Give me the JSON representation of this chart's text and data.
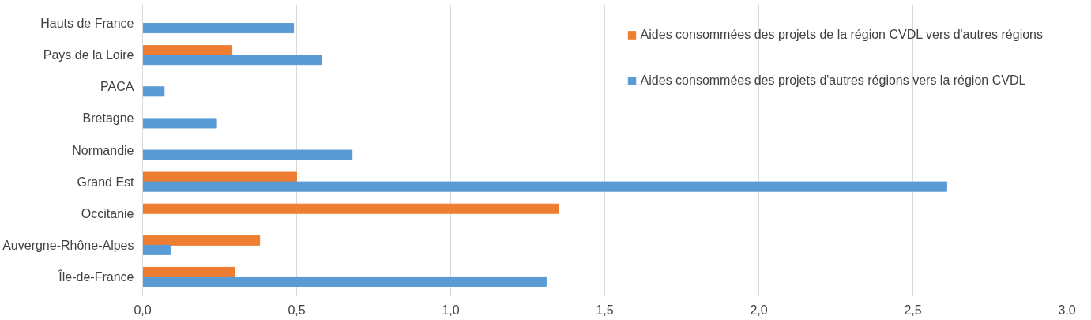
{
  "chart_data": {
    "type": "bar",
    "orientation": "horizontal",
    "categories": [
      "Hauts de France",
      "Pays de la Loire",
      "PACA",
      "Bretagne",
      "Normandie",
      "Grand Est",
      "Occitanie",
      "Auvergne-Rhône-Alpes",
      "Île-de-France"
    ],
    "series": [
      {
        "name": "Aides consommées des projets de la région CVDL vers d'autres régions",
        "color": "#ed7d31",
        "values": [
          null,
          0.29,
          null,
          null,
          null,
          0.5,
          1.35,
          0.38,
          0.3
        ]
      },
      {
        "name": "Aides consommées des projets d'autres régions vers la région CVDL",
        "color": "#5b9bd5",
        "values": [
          0.49,
          0.58,
          0.07,
          0.24,
          0.68,
          2.61,
          null,
          0.09,
          1.31
        ]
      }
    ],
    "xlim": [
      0,
      3.0
    ],
    "xticks": [
      {
        "value": 0,
        "label": "0,0"
      },
      {
        "value": 0.5,
        "label": "0,5"
      },
      {
        "value": 1.0,
        "label": "1,0"
      },
      {
        "value": 1.5,
        "label": "1,5"
      },
      {
        "value": 2.0,
        "label": "2,0"
      },
      {
        "value": 2.5,
        "label": "2,5"
      },
      {
        "value": 3.0,
        "label": "3,0"
      }
    ],
    "grid": "x",
    "legend": "top right"
  }
}
